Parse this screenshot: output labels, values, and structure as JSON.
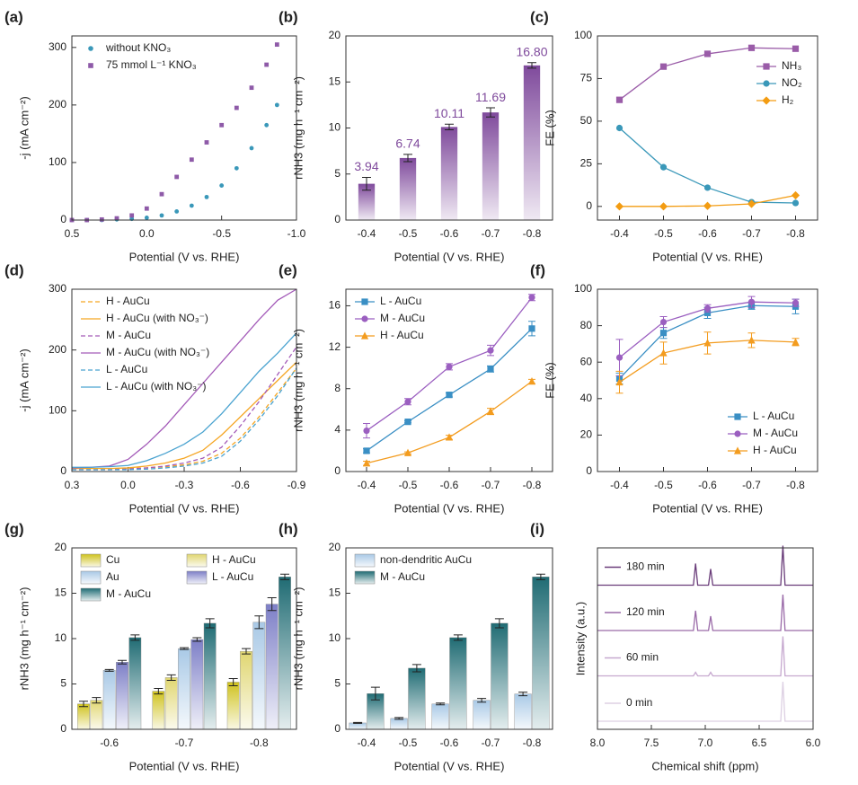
{
  "chart_data": [
    {
      "type": "scatter",
      "label": "(a)",
      "xlabel": "Potential (V vs. RHE)",
      "ylabel": "-j (mA cm⁻²)",
      "x": [
        0.5,
        0.4,
        0.3,
        0.2,
        0.1,
        0.0,
        -0.1,
        -0.2,
        -0.3,
        -0.4,
        -0.5,
        -0.6,
        -0.7,
        -0.8,
        -0.87
      ],
      "xlim": [
        0.5,
        -1.0
      ],
      "xticks": [
        0.5,
        {
          "value": 0,
          "label": "0.0"
        },
        -0.5,
        {
          "value": -1,
          "label": "-1.0"
        }
      ],
      "ylim": [
        0,
        320
      ],
      "yticks": [
        0,
        100,
        200,
        300
      ],
      "legend": "upper left",
      "series": [
        {
          "name": "without KNO₃",
          "color": "#3a98b9",
          "marker": "circle",
          "values": [
            0,
            0,
            0,
            1,
            2,
            4,
            8,
            15,
            25,
            40,
            60,
            90,
            125,
            165,
            200
          ]
        },
        {
          "name": "75 mmol L⁻¹ KNO₃",
          "color": "#8e5aa8",
          "marker": "square",
          "values": [
            0,
            0,
            1,
            3,
            8,
            20,
            45,
            75,
            105,
            135,
            165,
            195,
            230,
            270,
            305
          ]
        }
      ]
    },
    {
      "type": "bar",
      "label": "(b)",
      "xlabel": "Potential (V vs. RHE)",
      "ylabel": "rNH3 (mg h⁻¹ cm⁻²)",
      "categories": [
        "-0.4",
        "-0.5",
        "-0.6",
        "-0.7",
        "-0.8"
      ],
      "values": [
        3.94,
        6.74,
        10.11,
        11.69,
        16.8
      ],
      "value_labels": [
        "3.94",
        "6.74",
        "10.11",
        "11.69",
        "16.80"
      ],
      "err": [
        0.7,
        0.4,
        0.3,
        0.5,
        0.3
      ],
      "color": "#7f4a9c",
      "ylim": [
        0,
        20
      ],
      "yticks": [
        0,
        5,
        10,
        15,
        20
      ]
    },
    {
      "type": "line",
      "label": "(c)",
      "xlabel": "Potential (V vs. RHE)",
      "ylabel": "FE (%)",
      "x": [
        -0.4,
        -0.5,
        -0.6,
        -0.7,
        -0.8
      ],
      "xlim": [
        -0.35,
        -0.85
      ],
      "xticks": [
        -0.4,
        -0.5,
        -0.6,
        -0.7,
        -0.8
      ],
      "ylim": [
        -8,
        100
      ],
      "yticks": [
        0,
        25,
        50,
        75,
        100
      ],
      "legend": "upper right",
      "series": [
        {
          "name": "NH₃",
          "color": "#9a5ca8",
          "marker": "square",
          "values": [
            62.5,
            82,
            89.5,
            93,
            92.5
          ]
        },
        {
          "name": "NO₂",
          "color": "#3a98b9",
          "marker": "circle",
          "values": [
            46,
            23,
            11,
            2.5,
            2
          ]
        },
        {
          "name": "H₂",
          "color": "#f39c12",
          "marker": "diamond",
          "values": [
            0,
            0,
            0.3,
            1.5,
            6.5
          ]
        }
      ]
    },
    {
      "type": "line",
      "label": "(d)",
      "xlabel": "Potential (V vs. RHE)",
      "ylabel": "-j (mA cm⁻²)",
      "x": [
        0.3,
        0.2,
        0.1,
        0.0,
        -0.1,
        -0.2,
        -0.3,
        -0.4,
        -0.5,
        -0.6,
        -0.7,
        -0.8,
        -0.9
      ],
      "xlim": [
        0.3,
        -0.9
      ],
      "xticks": [
        0.3,
        {
          "value": 0,
          "label": "0.0"
        },
        -0.3,
        -0.6,
        -0.9
      ],
      "ylim": [
        0,
        300
      ],
      "yticks": [
        0,
        100,
        200,
        300
      ],
      "legend": "upper left",
      "series": [
        {
          "name": "H - AuCu",
          "color": "#f5a623",
          "dash": true,
          "values": [
            5,
            5,
            5,
            5,
            6,
            8,
            11,
            17,
            30,
            55,
            90,
            130,
            170
          ]
        },
        {
          "name": "H - AuCu (with NO₃⁻)",
          "color": "#f5a623",
          "values": [
            5,
            5,
            5,
            6,
            9,
            14,
            22,
            35,
            60,
            90,
            120,
            150,
            180
          ]
        },
        {
          "name": "M - AuCu",
          "color": "#a35ab8",
          "dash": true,
          "values": [
            3,
            3,
            3,
            4,
            6,
            9,
            14,
            22,
            40,
            75,
            115,
            160,
            205
          ]
        },
        {
          "name": "M - AuCu (with NO₃⁻)",
          "color": "#a35ab8",
          "values": [
            6,
            7,
            9,
            20,
            45,
            75,
            110,
            145,
            180,
            215,
            250,
            282,
            300
          ]
        },
        {
          "name": "L - AuCu",
          "color": "#4aa3d0",
          "dash": true,
          "values": [
            3,
            3,
            3,
            3,
            4,
            6,
            9,
            14,
            25,
            50,
            85,
            125,
            170
          ]
        },
        {
          "name": "L - AuCu (with NO₃⁻)",
          "color": "#4aa3d0",
          "values": [
            7,
            7,
            8,
            10,
            18,
            30,
            45,
            65,
            95,
            130,
            165,
            195,
            228
          ]
        }
      ]
    },
    {
      "type": "line",
      "label": "(e)",
      "xlabel": "Potential (V vs. RHE)",
      "ylabel": "rNH3 (mg h⁻¹ cm⁻²)",
      "x": [
        -0.4,
        -0.5,
        -0.6,
        -0.7,
        -0.8
      ],
      "xlim": [
        -0.35,
        -0.85
      ],
      "xticks": [
        -0.4,
        -0.5,
        -0.6,
        -0.7,
        -0.8
      ],
      "ylim": [
        0,
        17.6
      ],
      "yticks": [
        0,
        4,
        8,
        12,
        16
      ],
      "legend": "upper left",
      "series": [
        {
          "name": "L - AuCu",
          "color": "#3a8fc4",
          "marker": "square",
          "values": [
            2.0,
            4.8,
            7.4,
            9.9,
            13.8
          ],
          "err": [
            0.2,
            0.1,
            0.2,
            0.3,
            0.7
          ]
        },
        {
          "name": "M - AuCu",
          "color": "#9b5fc0",
          "marker": "circle",
          "values": [
            3.94,
            6.74,
            10.11,
            11.69,
            16.8
          ],
          "err": [
            0.7,
            0.3,
            0.3,
            0.5,
            0.3
          ]
        },
        {
          "name": "H - AuCu",
          "color": "#f39c1f",
          "marker": "triangle",
          "values": [
            0.8,
            1.8,
            3.3,
            5.8,
            8.7
          ],
          "err": [
            0.2,
            0.1,
            0.2,
            0.3,
            0.2
          ]
        }
      ]
    },
    {
      "type": "line",
      "label": "(f)",
      "xlabel": "Potential (V vs. RHE)",
      "ylabel": "FE (%)",
      "x": [
        -0.4,
        -0.5,
        -0.6,
        -0.7,
        -0.8
      ],
      "xlim": [
        -0.35,
        -0.85
      ],
      "xticks": [
        -0.4,
        -0.5,
        -0.6,
        -0.7,
        -0.8
      ],
      "ylim": [
        0,
        100
      ],
      "yticks": [
        0,
        20,
        40,
        60,
        80,
        100
      ],
      "legend": "lower right",
      "series": [
        {
          "name": "L - AuCu",
          "color": "#3a8fc4",
          "marker": "square",
          "values": [
            51,
            76,
            87,
            91,
            90.5
          ],
          "err": [
            3,
            3,
            3,
            2,
            4
          ]
        },
        {
          "name": "M - AuCu",
          "color": "#9b5fc0",
          "marker": "circle",
          "values": [
            62.5,
            82,
            89.5,
            93,
            92.5
          ],
          "err": [
            10,
            3,
            2,
            3,
            2
          ]
        },
        {
          "name": "H - AuCu",
          "color": "#f39c1f",
          "marker": "triangle",
          "values": [
            49,
            65,
            70.5,
            72,
            71
          ],
          "err": [
            6,
            6,
            6,
            4,
            2
          ]
        }
      ]
    },
    {
      "type": "bar",
      "label": "(g)",
      "xlabel": "Potential (V vs. RHE)",
      "ylabel": "rNH3 (mg h⁻¹ cm⁻²)",
      "categories": [
        "-0.6",
        "-0.7",
        "-0.8"
      ],
      "ylim": [
        0,
        20
      ],
      "yticks": [
        0,
        5,
        10,
        15,
        20
      ],
      "legend": "upper left",
      "series": [
        {
          "name": "Cu",
          "color": "#cfc21e",
          "values": [
            2.8,
            4.2,
            5.2
          ],
          "err": [
            0.3,
            0.3,
            0.4
          ]
        },
        {
          "name": "H - AuCu",
          "color": "#e0d670",
          "values": [
            3.2,
            5.7,
            8.6
          ],
          "err": [
            0.3,
            0.3,
            0.3
          ]
        },
        {
          "name": "Au",
          "color": "#a9c9e6",
          "values": [
            6.5,
            8.9,
            11.8
          ],
          "err": [
            0.1,
            0.1,
            0.7
          ]
        },
        {
          "name": "L - AuCu",
          "color": "#7d7fc7",
          "values": [
            7.4,
            9.9,
            13.8
          ],
          "err": [
            0.2,
            0.2,
            0.7
          ]
        },
        {
          "name": "M - AuCu",
          "color": "#1f6b73",
          "values": [
            10.11,
            11.69,
            16.8
          ],
          "err": [
            0.3,
            0.5,
            0.3
          ]
        }
      ]
    },
    {
      "type": "bar",
      "label": "(h)",
      "xlabel": "Potential (V vs. RHE)",
      "ylabel": "rNH3 (mg h⁻¹ cm⁻²)",
      "categories": [
        "-0.4",
        "-0.5",
        "-0.6",
        "-0.7",
        "-0.8"
      ],
      "ylim": [
        0,
        20
      ],
      "yticks": [
        0,
        5,
        10,
        15,
        20
      ],
      "legend": "upper left",
      "series": [
        {
          "name": "non-dendritic AuCu",
          "color": "#a9c9e6",
          "values": [
            0.7,
            1.2,
            2.8,
            3.2,
            3.9
          ],
          "err": [
            0.05,
            0.1,
            0.1,
            0.2,
            0.2
          ]
        },
        {
          "name": "M - AuCu",
          "color": "#1f6b73",
          "values": [
            3.94,
            6.74,
            10.11,
            11.69,
            16.8
          ],
          "err": [
            0.7,
            0.4,
            0.3,
            0.5,
            0.3
          ]
        }
      ]
    },
    {
      "type": "spectrum",
      "label": "(i)",
      "xlabel": "Chemical shift (ppm)",
      "ylabel": "Intensity (a.u.)",
      "x": [
        8.0,
        7.11,
        7.09,
        7.07,
        6.97,
        6.95,
        6.93,
        6.3,
        6.28,
        6.26,
        6.0
      ],
      "xlim": [
        8.0,
        6.0
      ],
      "xticks": [
        {
          "value": 8,
          "label": "8.0"
        },
        7.5,
        {
          "value": 7,
          "label": "7.0"
        },
        6.5,
        {
          "value": 6,
          "label": "6.0"
        }
      ],
      "series": [
        {
          "name": "180 min",
          "color": "#6a3d7a",
          "values": [
            0,
            0,
            12,
            0,
            0,
            9,
            0,
            0,
            22,
            0,
            0
          ]
        },
        {
          "name": "120 min",
          "color": "#9a6aa8",
          "values": [
            0,
            0,
            11,
            0,
            0,
            8,
            0,
            0,
            20,
            0,
            0
          ]
        },
        {
          "name": "60 min",
          "color": "#c6a8cf",
          "values": [
            0,
            0,
            2,
            0,
            0,
            2,
            0,
            0,
            22,
            0,
            0
          ]
        },
        {
          "name": "0 min",
          "color": "#ddd0e3",
          "values": [
            0,
            0,
            0,
            0,
            0,
            0,
            0,
            0,
            22,
            0,
            0
          ]
        }
      ]
    }
  ]
}
